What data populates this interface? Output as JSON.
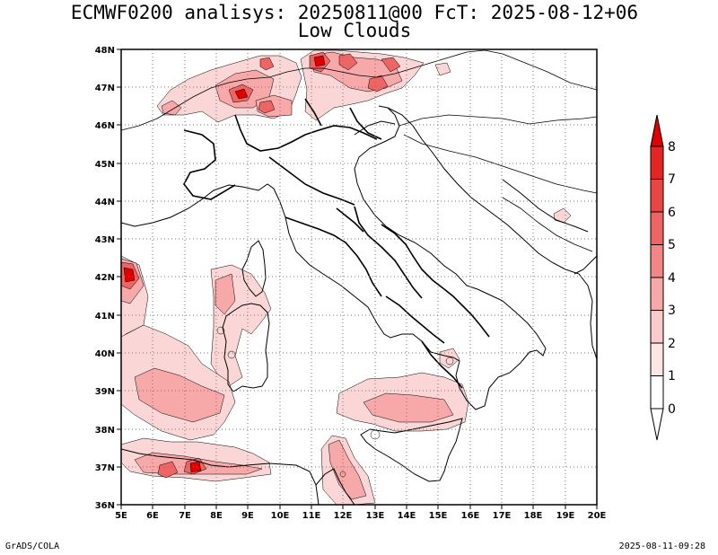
{
  "title": {
    "line1": "ECMWF0200 analisys: 20250811@00 FcT: 2025-08-12+06",
    "line2": "Low Clouds"
  },
  "axes": {
    "lon_labels": [
      "5E",
      "6E",
      "7E",
      "8E",
      "9E",
      "10E",
      "11E",
      "12E",
      "13E",
      "14E",
      "15E",
      "16E",
      "17E",
      "18E",
      "19E",
      "20E"
    ],
    "lat_labels": [
      "36N",
      "37N",
      "38N",
      "39N",
      "40N",
      "41N",
      "42N",
      "43N",
      "44N",
      "45N",
      "46N",
      "47N",
      "48N"
    ],
    "lon_range": [
      5,
      20
    ],
    "lat_range": [
      36,
      48
    ],
    "grid": "dotted"
  },
  "colorbar": {
    "levels": [
      "0",
      "1",
      "2",
      "3",
      "4",
      "5",
      "6",
      "7",
      "8"
    ],
    "colors": [
      "#fde6e6",
      "#fbcaca",
      "#f7a9a9",
      "#f28585",
      "#ee6565",
      "#ea4545",
      "#e52424",
      "#e00000"
    ]
  },
  "footer": {
    "left": "GrADS/COLA",
    "right": "2025-08-11-09:28"
  }
}
